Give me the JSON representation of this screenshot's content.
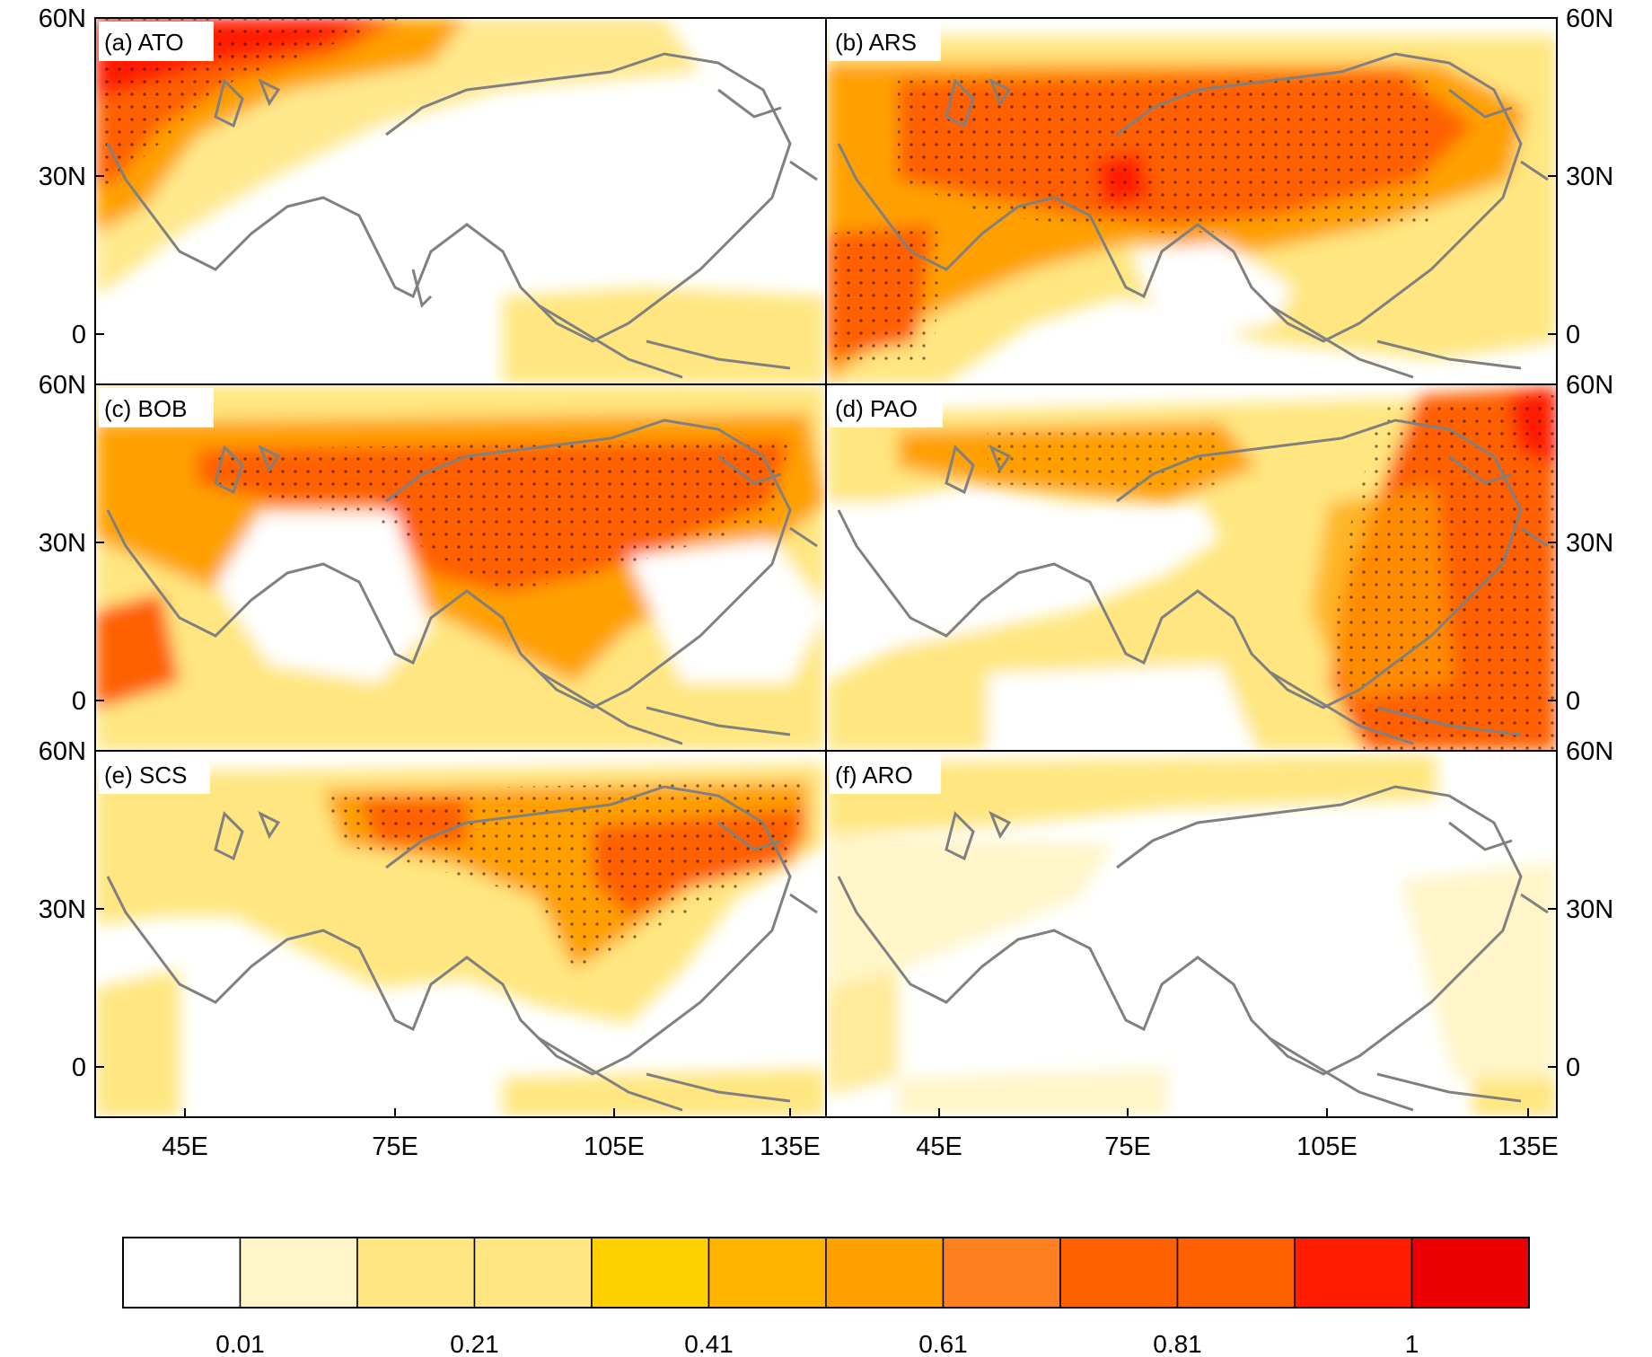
{
  "panels": [
    {
      "id": "a",
      "label": "(a) ATO"
    },
    {
      "id": "b",
      "label": "(b) ARS"
    },
    {
      "id": "c",
      "label": "(c) BOB"
    },
    {
      "id": "d",
      "label": "(d) PAO"
    },
    {
      "id": "e",
      "label": "(e) SCS"
    },
    {
      "id": "f",
      "label": "(f) ARO"
    }
  ],
  "axes": {
    "lat_ticks": [
      "60N",
      "30N",
      "0"
    ],
    "lon_ticks": [
      "45E",
      "75E",
      "105E",
      "135E"
    ]
  },
  "colorbar": {
    "colors": [
      "#ffffff",
      "#fff5c8",
      "#ffe680",
      "#ffe680",
      "#ffd000",
      "#ffb400",
      "#ffa000",
      "#ff8020",
      "#ff6000",
      "#ff6000",
      "#ff1c00",
      "#ee0000"
    ],
    "labels": [
      "0.01",
      "0.21",
      "0.41",
      "0.61",
      "0.81",
      "1"
    ]
  }
}
